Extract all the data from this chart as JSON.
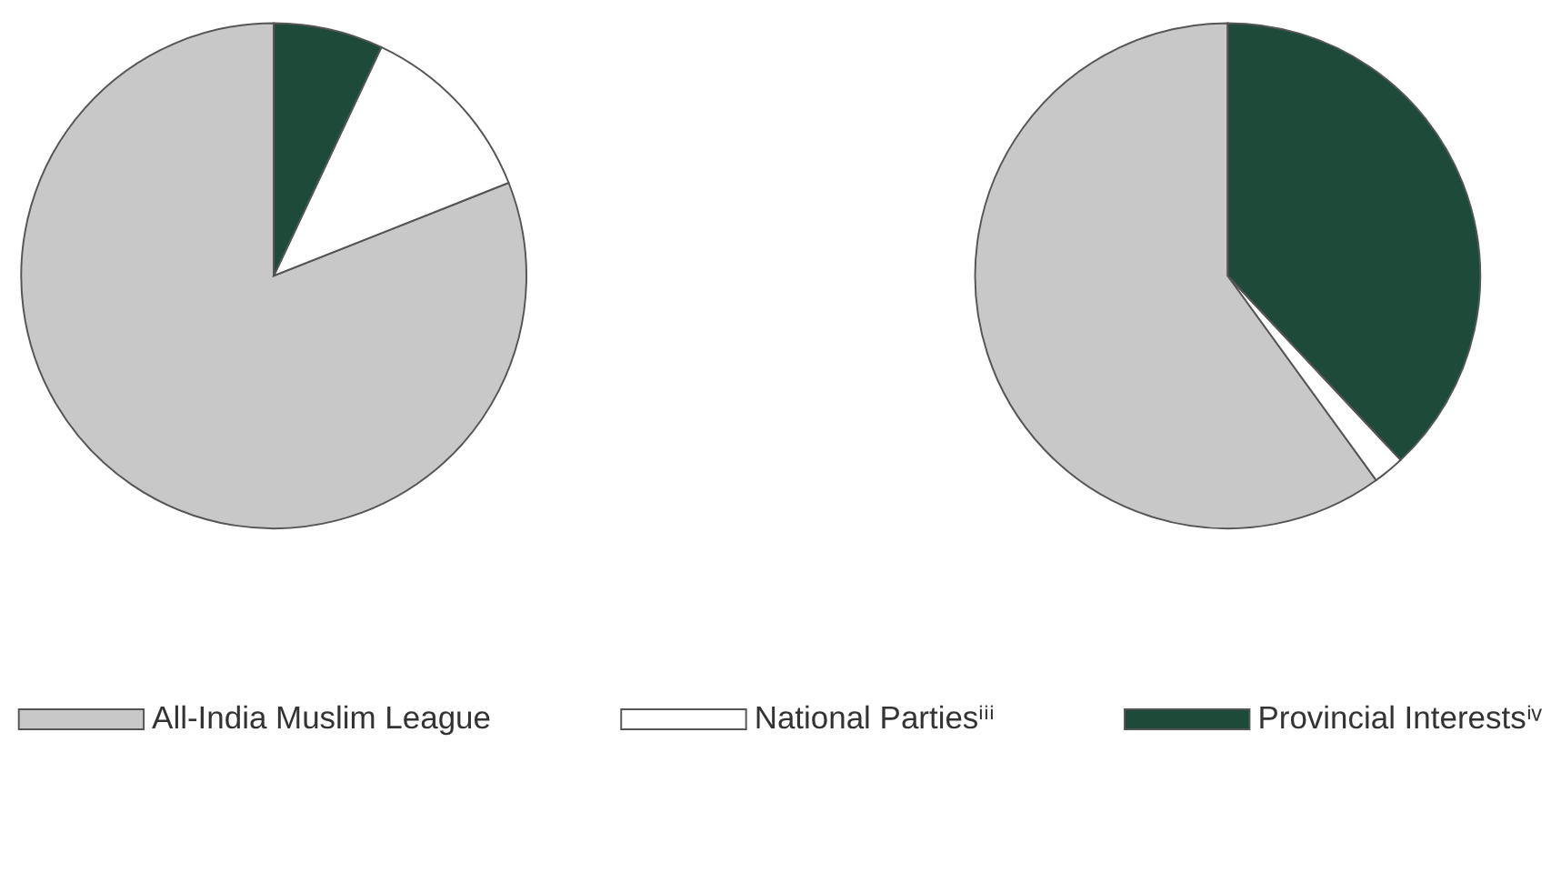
{
  "chart_data": {
    "type": "pie",
    "categories": [
      "All-India Muslim League",
      "National Partiesⁱⁱⁱ",
      "Provincial Interestsⁱᵛ"
    ],
    "colors": [
      "#c8c8c8",
      "#ffffff",
      "#1e4a3a"
    ],
    "legend": "bottom",
    "series": [
      {
        "values": [
          81,
          12,
          7
        ]
      },
      {
        "values": [
          60,
          2,
          38
        ]
      }
    ]
  }
}
